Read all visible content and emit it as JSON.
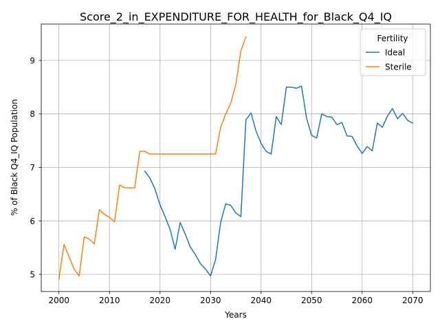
{
  "chart_data": {
    "type": "line",
    "title": "Score_2_in_EXPENDITURE_FOR_HEALTH_for_Black_Q4_IQ",
    "xlabel": "Years",
    "ylabel": "% of Black Q4_IQ Population",
    "xlim": [
      1996.5,
      2073.5
    ],
    "ylim": [
      4.68,
      9.68
    ],
    "xticks": [
      2000,
      2010,
      2020,
      2030,
      2040,
      2050,
      2060,
      2070
    ],
    "xtick_labels": [
      "2000",
      "2010",
      "2020",
      "2030",
      "2040",
      "2050",
      "2060",
      "2070"
    ],
    "yticks": [
      5,
      6,
      7,
      8,
      9
    ],
    "ytick_labels": [
      "5",
      "6",
      "7",
      "8",
      "9"
    ],
    "grid": true,
    "legend": {
      "title": "Fertility",
      "placement": "top-right"
    },
    "series": [
      {
        "name": "Ideal",
        "color": "#1f77b4",
        "x": [
          2017,
          2018,
          2019,
          2020,
          2021,
          2022,
          2023,
          2024,
          2025,
          2026,
          2027,
          2028,
          2029,
          2030,
          2031,
          2032,
          2033,
          2034,
          2035,
          2036,
          2037,
          2038,
          2039,
          2040,
          2041,
          2042,
          2043,
          2044,
          2045,
          2046,
          2047,
          2048,
          2049,
          2050,
          2051,
          2052,
          2053,
          2054,
          2055,
          2056,
          2057,
          2058,
          2059,
          2060,
          2061,
          2062,
          2063,
          2064,
          2065,
          2066,
          2067,
          2068,
          2069,
          2070
        ],
        "values": [
          6.93,
          6.8,
          6.6,
          6.3,
          6.08,
          5.84,
          5.47,
          5.97,
          5.75,
          5.51,
          5.37,
          5.2,
          5.1,
          4.97,
          5.28,
          5.97,
          6.32,
          6.29,
          6.15,
          6.08,
          7.89,
          8.02,
          7.68,
          7.45,
          7.3,
          7.25,
          7.95,
          7.8,
          8.5,
          8.5,
          8.48,
          8.52,
          7.92,
          7.6,
          7.55,
          8.0,
          7.95,
          7.94,
          7.8,
          7.84,
          7.59,
          7.58,
          7.4,
          7.26,
          7.39,
          7.31,
          7.83,
          7.75,
          7.96,
          8.1,
          7.91,
          8.01,
          7.88,
          7.83
        ]
      },
      {
        "name": "Sterile",
        "color": "#ff7f0e",
        "x": [
          2000,
          2001,
          2002,
          2003,
          2004,
          2005,
          2006,
          2007,
          2008,
          2009,
          2010,
          2011,
          2012,
          2013,
          2014,
          2015,
          2016,
          2017,
          2018,
          2019,
          2020,
          2021,
          2022,
          2023,
          2024,
          2025,
          2026,
          2027,
          2028,
          2029,
          2030,
          2031,
          2032,
          2033,
          2034,
          2035,
          2036,
          2037
        ],
        "values": [
          4.91,
          5.56,
          5.33,
          5.1,
          4.97,
          5.7,
          5.66,
          5.57,
          6.21,
          6.12,
          6.07,
          5.98,
          6.67,
          6.62,
          6.62,
          6.62,
          7.3,
          7.3,
          7.25,
          7.25,
          7.25,
          7.25,
          7.25,
          7.25,
          7.25,
          7.25,
          7.25,
          7.25,
          7.25,
          7.25,
          7.25,
          7.25,
          7.75,
          8.0,
          8.2,
          8.55,
          9.18,
          9.44
        ]
      }
    ]
  }
}
